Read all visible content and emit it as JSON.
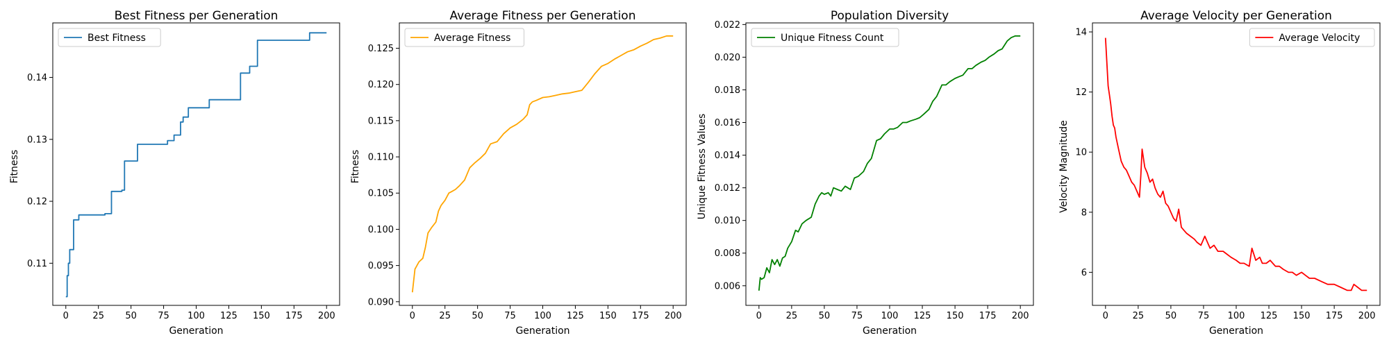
{
  "chart_data": [
    {
      "type": "line",
      "title": "Best Fitness per Generation",
      "xlabel": "Generation",
      "ylabel": "Fitness",
      "xlim": [
        -10,
        210
      ],
      "ylim": [
        0.1032,
        0.1488
      ],
      "xticks": [
        0,
        25,
        50,
        75,
        100,
        125,
        150,
        175,
        200
      ],
      "xtick_labels": [
        "0",
        "25",
        "50",
        "75",
        "100",
        "125",
        "150",
        "175",
        "200"
      ],
      "yticks": [
        0.11,
        0.12,
        0.13,
        0.14
      ],
      "ytick_labels": [
        "0.11",
        "0.12",
        "0.13",
        "0.14"
      ],
      "legend": "upper left",
      "grid": false,
      "series": [
        {
          "name": "Best Fitness",
          "color": "#1f77b4",
          "step": true,
          "x": [
            0,
            1,
            2,
            3,
            6,
            10,
            30,
            35,
            43,
            45,
            55,
            78,
            83,
            88,
            90,
            94,
            110,
            134,
            141,
            147,
            187,
            200
          ],
          "y": [
            0.1046,
            0.108,
            0.11,
            0.1122,
            0.117,
            0.1178,
            0.118,
            0.1216,
            0.1218,
            0.1265,
            0.1292,
            0.1298,
            0.1307,
            0.1328,
            0.1336,
            0.1351,
            0.1364,
            0.1407,
            0.1418,
            0.146,
            0.1472,
            0.1472
          ]
        }
      ]
    },
    {
      "type": "line",
      "title": "Average Fitness per Generation",
      "xlabel": "Generation",
      "ylabel": "Fitness",
      "xlim": [
        -10,
        210
      ],
      "ylim": [
        0.0895,
        0.1285
      ],
      "xticks": [
        0,
        25,
        50,
        75,
        100,
        125,
        150,
        175,
        200
      ],
      "xtick_labels": [
        "0",
        "25",
        "50",
        "75",
        "100",
        "125",
        "150",
        "175",
        "200"
      ],
      "yticks": [
        0.09,
        0.095,
        0.1,
        0.105,
        0.11,
        0.115,
        0.12,
        0.125
      ],
      "ytick_labels": [
        "0.090",
        "0.095",
        "0.100",
        "0.105",
        "0.110",
        "0.115",
        "0.120",
        "0.125"
      ],
      "legend": "upper left",
      "grid": false,
      "series": [
        {
          "name": "Average Fitness",
          "color": "#ffa500",
          "step": false,
          "x": [
            0,
            2,
            5,
            8,
            10,
            12,
            15,
            18,
            20,
            22,
            25,
            28,
            30,
            33,
            36,
            40,
            44,
            48,
            52,
            56,
            60,
            65,
            70,
            75,
            80,
            85,
            88,
            90,
            92,
            95,
            100,
            105,
            110,
            115,
            120,
            125,
            130,
            135,
            140,
            145,
            150,
            155,
            160,
            165,
            170,
            175,
            180,
            185,
            190,
            195,
            200
          ],
          "y": [
            0.0913,
            0.0945,
            0.0955,
            0.096,
            0.0975,
            0.0995,
            0.1003,
            0.101,
            0.1025,
            0.1033,
            0.104,
            0.105,
            0.1052,
            0.1055,
            0.106,
            0.1068,
            0.1085,
            0.1092,
            0.1098,
            0.1105,
            0.1118,
            0.1121,
            0.1132,
            0.114,
            0.1145,
            0.1152,
            0.1158,
            0.1172,
            0.1176,
            0.1178,
            0.1182,
            0.1183,
            0.1185,
            0.1187,
            0.1188,
            0.119,
            0.1192,
            0.1203,
            0.1215,
            0.1225,
            0.1229,
            0.1235,
            0.124,
            0.1245,
            0.1248,
            0.1253,
            0.1257,
            0.1262,
            0.1264,
            0.1267,
            0.1267
          ]
        }
      ]
    },
    {
      "type": "line",
      "title": "Population Diversity",
      "xlabel": "Generation",
      "ylabel": "Unique Fitness Values",
      "xlim": [
        -10,
        210
      ],
      "ylim": [
        0.0048,
        0.0221
      ],
      "xticks": [
        0,
        25,
        50,
        75,
        100,
        125,
        150,
        175,
        200
      ],
      "xtick_labels": [
        "0",
        "25",
        "50",
        "75",
        "100",
        "125",
        "150",
        "175",
        "200"
      ],
      "yticks": [
        0.006,
        0.008,
        0.01,
        0.012,
        0.014,
        0.016,
        0.018,
        0.02,
        0.022
      ],
      "ytick_labels": [
        "0.006",
        "0.008",
        "0.010",
        "0.012",
        "0.014",
        "0.016",
        "0.018",
        "0.020",
        "0.022"
      ],
      "legend": "upper left",
      "grid": false,
      "series": [
        {
          "name": "Unique Fitness Count",
          "color": "#008000",
          "step": false,
          "x": [
            0,
            1,
            2,
            4,
            6,
            8,
            10,
            12,
            14,
            16,
            18,
            20,
            22,
            25,
            28,
            30,
            33,
            36,
            40,
            43,
            46,
            48,
            50,
            53,
            55,
            57,
            60,
            63,
            66,
            70,
            73,
            76,
            80,
            83,
            86,
            90,
            93,
            96,
            100,
            103,
            106,
            110,
            113,
            116,
            120,
            123,
            126,
            130,
            133,
            136,
            140,
            143,
            146,
            150,
            153,
            156,
            160,
            163,
            166,
            170,
            173,
            176,
            180,
            183,
            186,
            190,
            193,
            196,
            200
          ],
          "y": [
            0.0057,
            0.0065,
            0.0064,
            0.0065,
            0.0071,
            0.0068,
            0.0076,
            0.0073,
            0.0076,
            0.0072,
            0.0077,
            0.0078,
            0.0083,
            0.0087,
            0.0094,
            0.0093,
            0.0098,
            0.01,
            0.0102,
            0.011,
            0.0115,
            0.0117,
            0.0116,
            0.0117,
            0.0115,
            0.012,
            0.0119,
            0.0118,
            0.0121,
            0.0119,
            0.0126,
            0.0127,
            0.013,
            0.0135,
            0.0138,
            0.0149,
            0.015,
            0.0153,
            0.0156,
            0.0156,
            0.0157,
            0.016,
            0.016,
            0.0161,
            0.0162,
            0.0163,
            0.0165,
            0.0168,
            0.0173,
            0.0176,
            0.0183,
            0.0183,
            0.0185,
            0.0187,
            0.0188,
            0.0189,
            0.0193,
            0.0193,
            0.0195,
            0.0197,
            0.0198,
            0.02,
            0.0202,
            0.0204,
            0.0205,
            0.021,
            0.0212,
            0.0213,
            0.0213
          ]
        }
      ]
    },
    {
      "type": "line",
      "title": "Average Velocity per Generation",
      "xlabel": "Generation",
      "ylabel": "Velocity Magnitude",
      "xlim": [
        -10,
        210
      ],
      "ylim": [
        4.9,
        14.3
      ],
      "xticks": [
        0,
        25,
        50,
        75,
        100,
        125,
        150,
        175,
        200
      ],
      "xtick_labels": [
        "0",
        "25",
        "50",
        "75",
        "100",
        "125",
        "150",
        "175",
        "200"
      ],
      "yticks": [
        6,
        8,
        10,
        12,
        14
      ],
      "ytick_labels": [
        "6",
        "8",
        "10",
        "12",
        "14"
      ],
      "legend": "upper right",
      "grid": false,
      "series": [
        {
          "name": "Average Velocity",
          "color": "#ff0000",
          "step": false,
          "x": [
            0,
            1,
            2,
            3,
            4,
            5,
            6,
            7,
            8,
            10,
            12,
            14,
            16,
            18,
            20,
            22,
            24,
            26,
            27,
            28,
            30,
            32,
            34,
            36,
            38,
            40,
            42,
            44,
            46,
            48,
            50,
            52,
            54,
            56,
            58,
            60,
            62,
            65,
            68,
            70,
            73,
            76,
            78,
            80,
            83,
            86,
            90,
            93,
            96,
            100,
            103,
            106,
            110,
            112,
            115,
            118,
            120,
            123,
            126,
            130,
            133,
            136,
            140,
            143,
            146,
            150,
            153,
            156,
            160,
            165,
            170,
            175,
            180,
            185,
            188,
            190,
            193,
            196,
            200
          ],
          "y": [
            13.8,
            13.0,
            12.2,
            11.9,
            11.6,
            11.2,
            10.9,
            10.8,
            10.5,
            10.1,
            9.7,
            9.5,
            9.4,
            9.2,
            9.0,
            8.9,
            8.7,
            8.5,
            9.2,
            10.1,
            9.5,
            9.3,
            9.0,
            9.1,
            8.8,
            8.6,
            8.5,
            8.7,
            8.3,
            8.2,
            8.0,
            7.8,
            7.7,
            8.1,
            7.5,
            7.4,
            7.3,
            7.2,
            7.1,
            7.0,
            6.9,
            7.2,
            7.0,
            6.8,
            6.9,
            6.7,
            6.7,
            6.6,
            6.5,
            6.4,
            6.3,
            6.3,
            6.2,
            6.8,
            6.4,
            6.5,
            6.3,
            6.3,
            6.4,
            6.2,
            6.2,
            6.1,
            6.0,
            6.0,
            5.9,
            6.0,
            5.9,
            5.8,
            5.8,
            5.7,
            5.6,
            5.6,
            5.5,
            5.4,
            5.4,
            5.6,
            5.5,
            5.4,
            5.4
          ]
        }
      ]
    }
  ]
}
